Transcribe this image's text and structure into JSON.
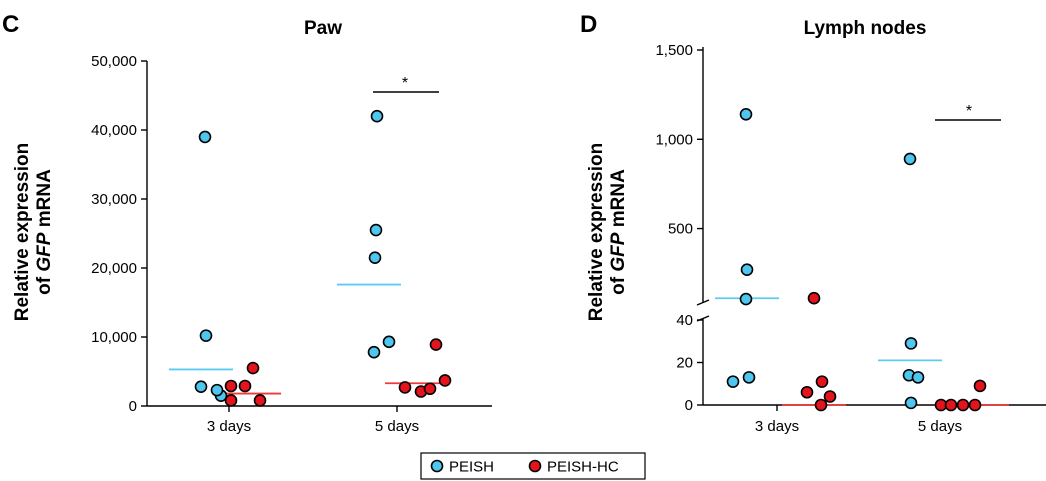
{
  "colors": {
    "PEISH": "#4ec6ee",
    "PEISH-HC": "#e3141c",
    "PEISH_median": "#5ccbf0",
    "PEISH-HC_median": "#ee3a3a"
  },
  "legend": [
    {
      "name": "PEISH",
      "color": "#4ec6ee"
    },
    {
      "name": "PEISH-HC",
      "color": "#e3141c"
    }
  ],
  "chart_data": [
    {
      "type": "scatter",
      "panel": "C",
      "title": "Paw",
      "ylabel_line1": "Relative expression",
      "ylabel_line2_prefix": "of ",
      "ylabel_line2_italic": "GFP",
      "ylabel_line2_suffix": " mRNA",
      "categories": [
        "3 days",
        "5 days"
      ],
      "ylim": [
        0,
        50000
      ],
      "yticks": [
        0,
        10000,
        20000,
        30000,
        40000,
        50000
      ],
      "ytick_labels": [
        "0",
        "10,000",
        "20,000",
        "30,000",
        "40,000",
        "50,000"
      ],
      "series": [
        {
          "name": "PEISH",
          "color": "#4ec6ee",
          "points": [
            {
              "category": "3 days",
              "values": [
                39000,
                10200,
                2800,
                1500,
                2300
              ],
              "median": 5300
            },
            {
              "category": "5 days",
              "values": [
                42000,
                25500,
                21500,
                9300,
                7800
              ],
              "median": 17600
            }
          ]
        },
        {
          "name": "PEISH-HC",
          "color": "#e3141c",
          "points": [
            {
              "category": "3 days",
              "values": [
                5500,
                2900,
                2900,
                800,
                800
              ],
              "median": 1800
            },
            {
              "category": "5 days",
              "values": [
                8900,
                3700,
                2700,
                2100,
                2500
              ],
              "median": 3300
            }
          ]
        }
      ],
      "significance": [
        {
          "category": "5 days",
          "label": "*"
        }
      ]
    },
    {
      "type": "scatter",
      "panel": "D",
      "title": "Lymph nodes",
      "ylabel_line1": "Relative expression",
      "ylabel_line2_prefix": "of ",
      "ylabel_line2_italic": "GFP",
      "ylabel_line2_suffix": " mRNA",
      "categories": [
        "3 days",
        "5 days"
      ],
      "axis_break": {
        "lower_range": [
          0,
          40
        ],
        "upper_range": [
          100,
          1500
        ]
      },
      "yticks_lower": [
        0,
        20,
        40
      ],
      "yticks_upper": [
        500,
        1000,
        1500
      ],
      "ytick_labels_lower": [
        "0",
        "20",
        "40"
      ],
      "ytick_labels_upper": [
        "500",
        "1,000",
        "1,500"
      ],
      "series": [
        {
          "name": "PEISH",
          "color": "#4ec6ee",
          "points": [
            {
              "category": "3 days",
              "values": [
                1140,
                270,
                105,
                13,
                11
              ],
              "median": 110
            },
            {
              "category": "5 days",
              "values": [
                890,
                29,
                14,
                13,
                1
              ],
              "median": 21
            }
          ]
        },
        {
          "name": "PEISH-HC",
          "color": "#e3141c",
          "points": [
            {
              "category": "3 days",
              "values": [
                110,
                11,
                6,
                4,
                0
              ],
              "median": 0
            },
            {
              "category": "5 days",
              "values": [
                9,
                0,
                0,
                0,
                0
              ],
              "median": 0
            }
          ]
        }
      ],
      "significance": [
        {
          "category": "5 days",
          "label": "*"
        }
      ]
    }
  ]
}
